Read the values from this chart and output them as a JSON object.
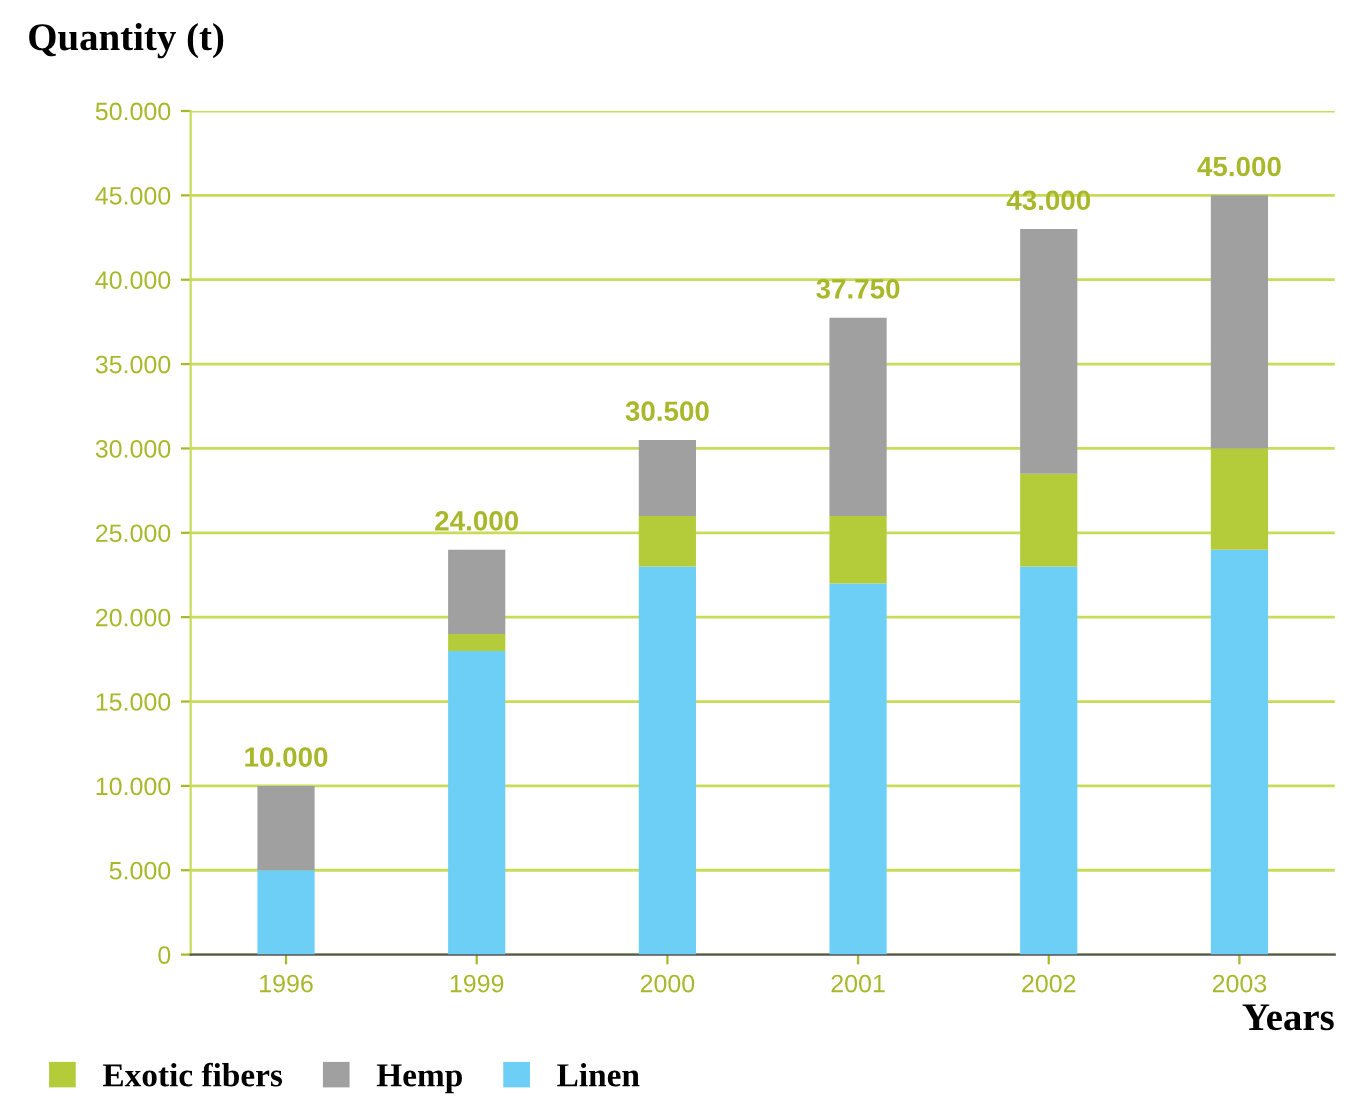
{
  "chart_data": {
    "type": "bar",
    "stacked": true,
    "ylabel": "Quantity (t)",
    "xlabel": "Years",
    "categories": [
      "1996",
      "1999",
      "2000",
      "2001",
      "2002",
      "2003"
    ],
    "series": [
      {
        "name": "Linen",
        "color": "#6dcff6",
        "values": [
          5000,
          18000,
          23000,
          22000,
          23000,
          24000
        ]
      },
      {
        "name": "Exotic fibers",
        "color": "#b5cc3a",
        "values": [
          0,
          1000,
          3000,
          4000,
          5500,
          6000
        ]
      },
      {
        "name": "Hemp",
        "color": "#a0a0a0",
        "values": [
          5000,
          5000,
          4500,
          11750,
          14500,
          15000
        ]
      }
    ],
    "totals": [
      "10.000",
      "24.000",
      "30.500",
      "37.750",
      "43.000",
      "45.000"
    ],
    "ylim": [
      0,
      50000
    ],
    "yticks": [
      {
        "value": 0,
        "label": "0"
      },
      {
        "value": 5000,
        "label": "5.000"
      },
      {
        "value": 10000,
        "label": "10.000"
      },
      {
        "value": 15000,
        "label": "15.000"
      },
      {
        "value": 20000,
        "label": "20.000"
      },
      {
        "value": 25000,
        "label": "25.000"
      },
      {
        "value": 30000,
        "label": "30.000"
      },
      {
        "value": 35000,
        "label": "35.000"
      },
      {
        "value": 40000,
        "label": "40.000"
      },
      {
        "value": 45000,
        "label": "45.000"
      },
      {
        "value": 50000,
        "label": "50.000"
      }
    ],
    "grid": "y",
    "legend": "bottom"
  }
}
